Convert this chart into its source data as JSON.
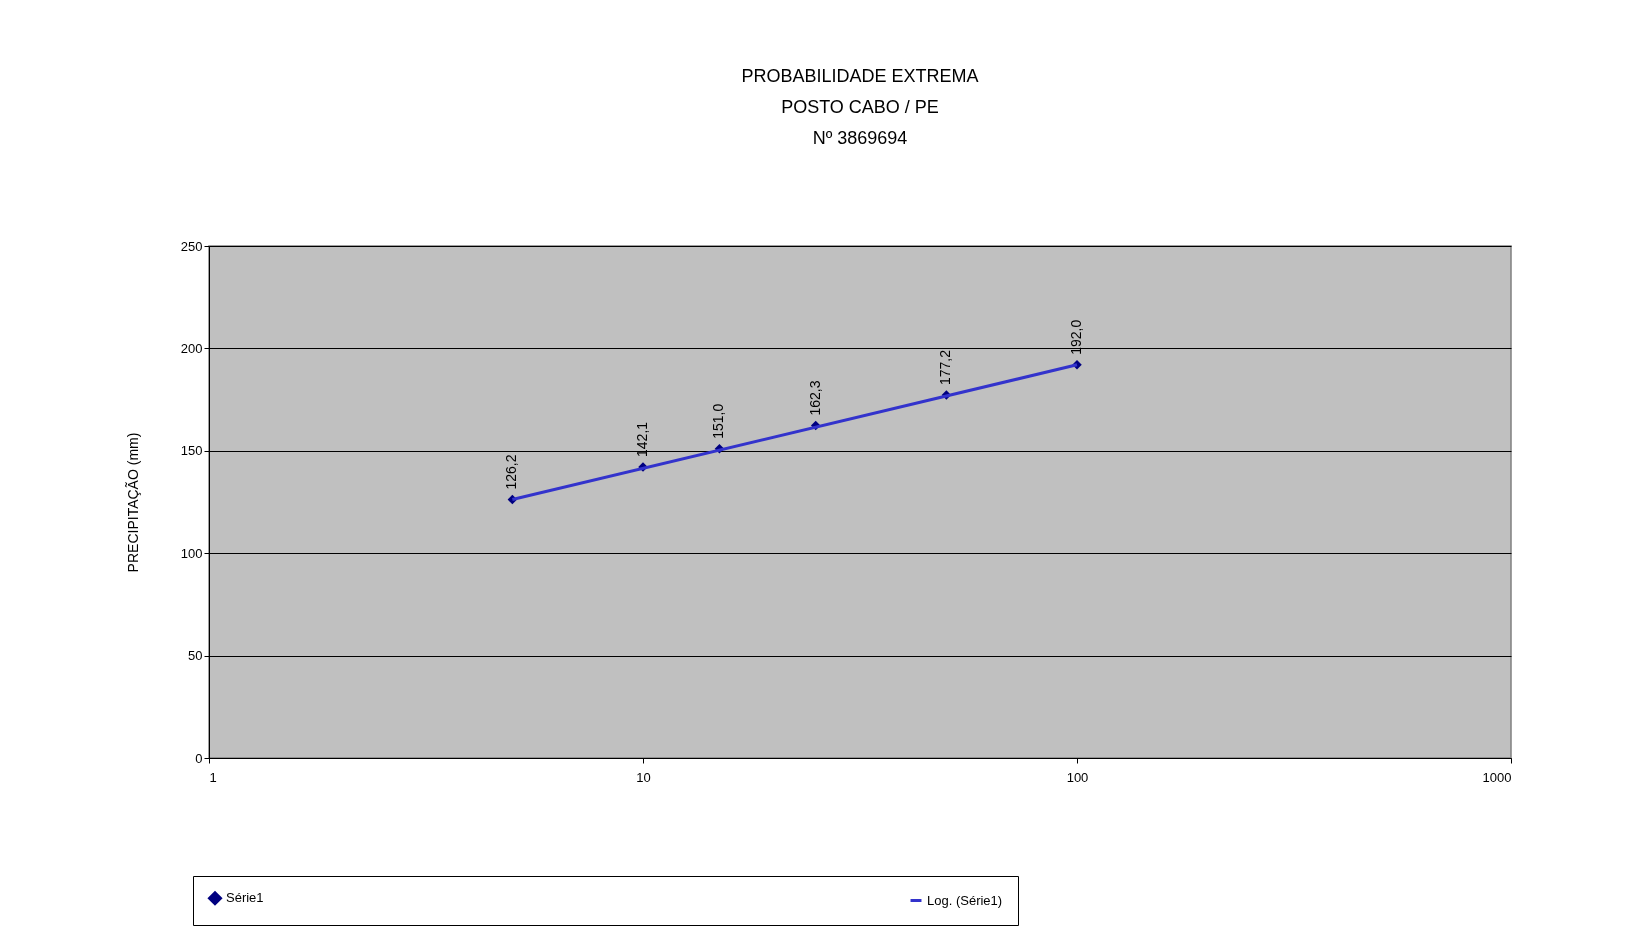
{
  "chart_data": {
    "type": "scatter",
    "title": "PROBABILIDADE EXTREMA\nPOSTO CABO / PE\nNº 3869694",
    "ylabel": "PRECIPITAÇÃO (mm)",
    "series": [
      {
        "name": "Série1",
        "color": "#000080",
        "marker": "diamond",
        "x": [
          5,
          10,
          15,
          25,
          50,
          100
        ],
        "values": [
          126.2,
          142.1,
          151.0,
          162.3,
          177.2,
          192.0
        ],
        "value_labels": [
          "126,2",
          "142,1",
          "151,0",
          "162,3",
          "177,2",
          "192,0"
        ]
      },
      {
        "name": "Log. (Série1)",
        "type": "line",
        "color": "#3333cc",
        "line_style": "solid",
        "x": [
          5,
          100
        ],
        "values": [
          126.2,
          192.0
        ]
      }
    ],
    "log": "x",
    "xlim": [
      1,
      1000
    ],
    "xticks": [
      1,
      10,
      100,
      1000
    ],
    "ylim": [
      0,
      250
    ],
    "yticks": [
      0,
      50,
      100,
      150,
      200,
      250
    ],
    "grid": "y",
    "legend": "bottom"
  }
}
